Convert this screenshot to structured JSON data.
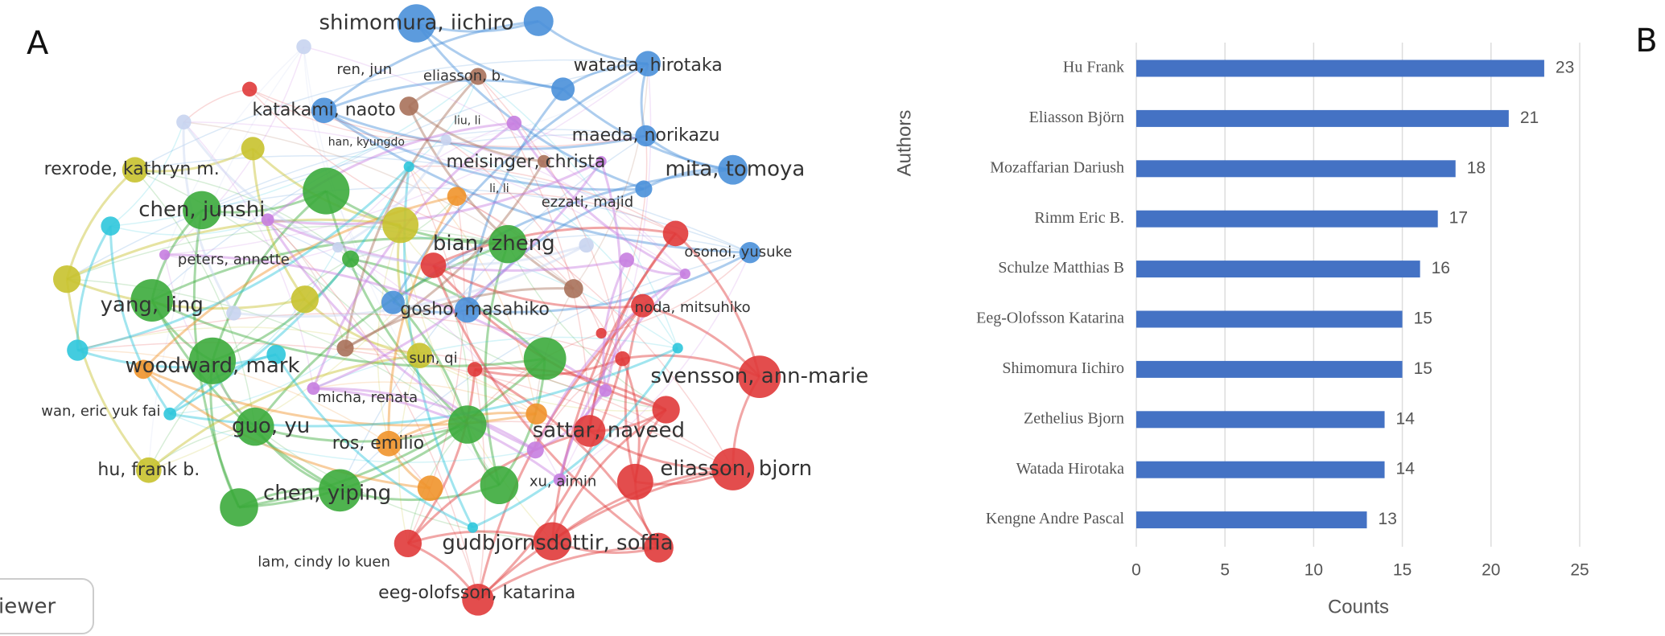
{
  "network": {
    "panel_label": "A",
    "button": "iewer",
    "labels": [
      "shimomura, iichiro",
      "watada, hirotaka",
      "ren, jun",
      "eliasson, b.",
      "katakami, naoto",
      "liu, li",
      "maeda, norikazu",
      "han, kyungdo",
      "meisinger, christa",
      "rexrode, kathryn m.",
      "mita, tomoya",
      "li, li",
      "ezzati, majid",
      "chen, junshi",
      "bian, zheng",
      "osonoi, yusuke",
      "peters, annette",
      "yang, ling",
      "gosho, masahiko",
      "noda, mitsuhiko",
      "woodward, mark",
      "sun, qi",
      "svensson, ann-marie",
      "micha, renata",
      "wan, eric yuk fai",
      "sattar, naveed",
      "guo, yu",
      "ros, emilio",
      "eliasson, bjorn",
      "hu, frank b.",
      "xu, aimin",
      "chen, yiping",
      "gudbjornsdottir, soffia",
      "lam, cindy lo kuen",
      "eeg-olofsson, katarina"
    ]
  },
  "chart_data": {
    "type": "bar",
    "orientation": "horizontal",
    "panel_label": "B",
    "ylabel": "Authors",
    "xlabel": "Counts",
    "categories": [
      "Hu Frank",
      "Eliasson Björn",
      "Mozaffarian Dariush",
      "Rimm Eric B.",
      "Schulze Matthias B",
      "Eeg-Olofsson Katarina",
      "Shimomura Iichiro",
      "Zethelius Bjorn",
      "Watada Hirotaka",
      "Kengne Andre Pascal"
    ],
    "values": [
      23,
      21,
      18,
      17,
      16,
      15,
      15,
      14,
      14,
      13
    ],
    "color": "#4472c4",
    "xlim": [
      0,
      25
    ],
    "xticks": [
      0,
      5,
      10,
      15,
      20,
      25
    ],
    "grid": true
  }
}
